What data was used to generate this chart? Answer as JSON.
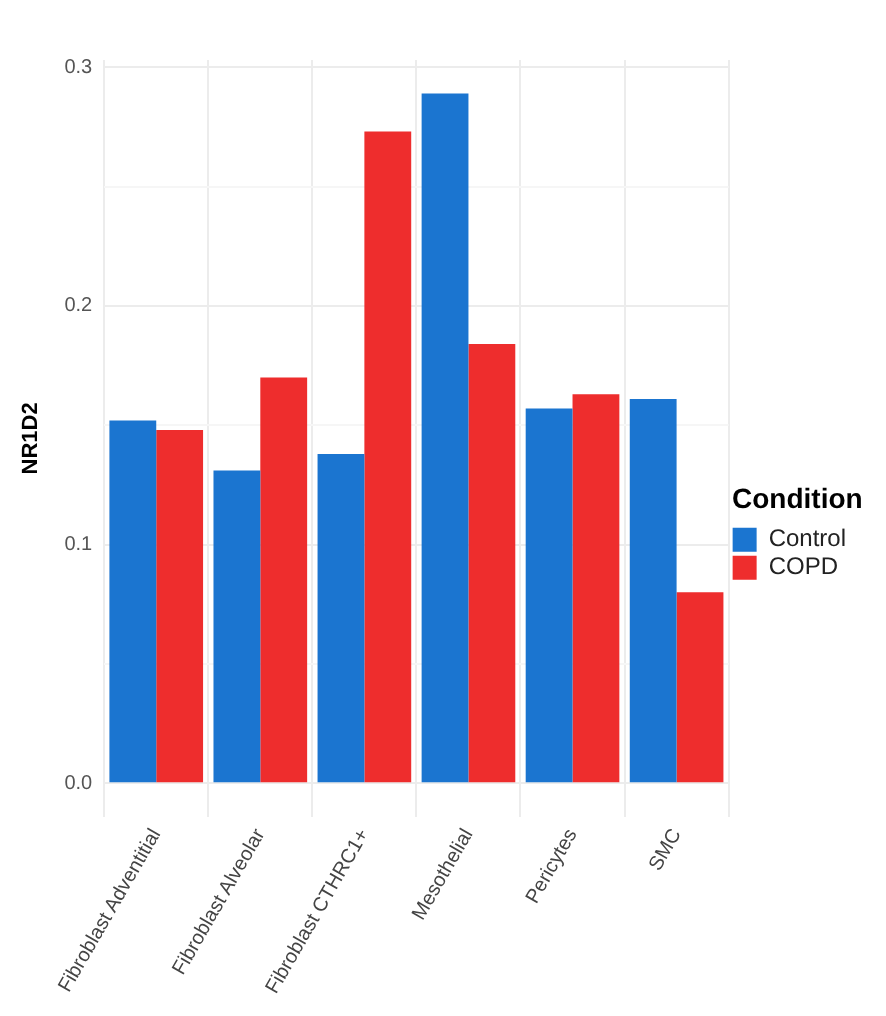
{
  "chart_data": {
    "type": "bar",
    "ylabel": "NR1D2",
    "legend_title": "Condition",
    "legend": "right",
    "grid": true,
    "categories": [
      "Fibroblast Adventitial",
      "Fibroblast Alveolar",
      "Fibroblast CTHRC1+",
      "Mesothelial",
      "Pericytes",
      "SMC"
    ],
    "series": [
      {
        "name": "Control",
        "color": "#1b75d0",
        "values": [
          0.152,
          0.131,
          0.138,
          0.289,
          0.157,
          0.161
        ]
      },
      {
        "name": "COPD",
        "color": "#ee2d2d",
        "values": [
          0.148,
          0.17,
          0.273,
          0.184,
          0.163,
          0.08
        ]
      }
    ],
    "ylim": [
      -0.014,
      0.303
    ],
    "yticks": [
      {
        "value": 0,
        "label": "0.0"
      },
      {
        "value": 0.05,
        "label": null
      },
      {
        "value": 0.1,
        "label": "0.1"
      },
      {
        "value": 0.15,
        "label": null
      },
      {
        "value": 0.2,
        "label": "0.2"
      },
      {
        "value": 0.25,
        "label": null
      },
      {
        "value": 0.3,
        "label": "0.3"
      }
    ]
  }
}
